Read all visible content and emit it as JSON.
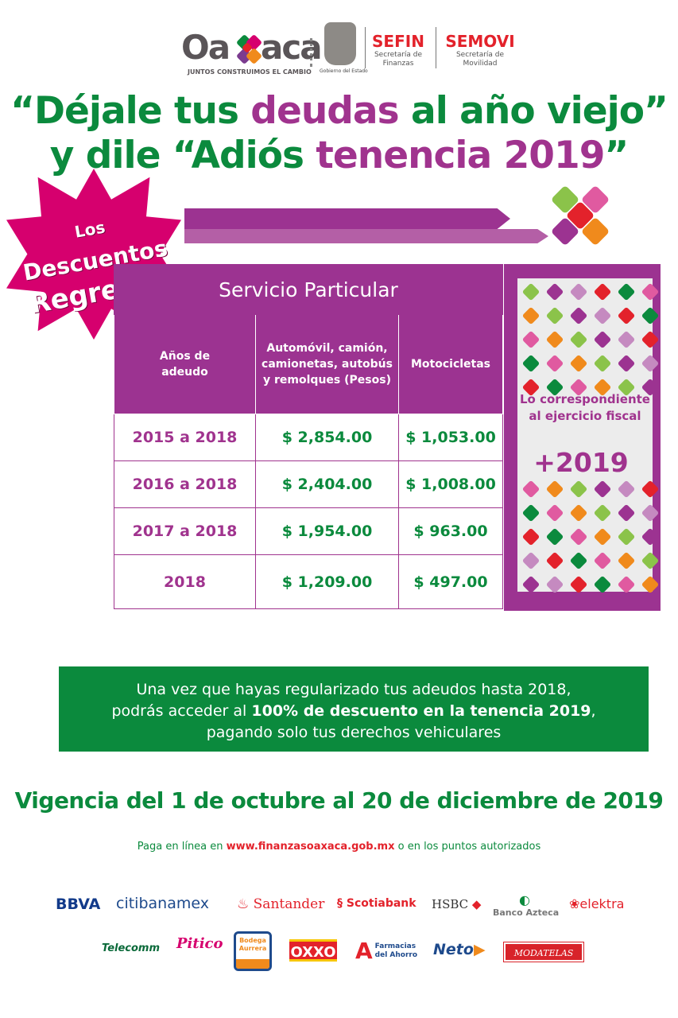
{
  "header": {
    "oaxaca_logo": "Oaxaca",
    "oaxaca_slogan": "JUNTOS CONSTRUIMOS EL CAMBIO",
    "gobierno": "Gobierno del Estado",
    "sefin": "SEFIN",
    "sefin_sub1": "Secretaría de",
    "sefin_sub2": "Finanzas",
    "semovi": "SEMOVI",
    "semovi_sub1": "Secretaría de",
    "semovi_sub2": "Movilidad"
  },
  "headline": {
    "l1_a": "“Déjale tus ",
    "l1_b": "deudas",
    "l1_c": " al año viejo”",
    "l2_a": "y dile “Adiós ",
    "l2_b": "tenencia 2019",
    "l2_c": "”"
  },
  "badge": {
    "l1": "Los",
    "l2": "Descuentos",
    "l3": "Regresan"
  },
  "table": {
    "title": "Servicio Particular",
    "columns": [
      "Años de adeudo",
      "Automóvil, camión, camionetas, autobús y remolques (Pesos)",
      "Motocicletas"
    ],
    "rows": [
      [
        "2015 a 2018",
        "$ 2,854.00",
        "$ 1,053.00"
      ],
      [
        "2016 a 2018",
        "$ 2,404.00",
        "$ 1,008.00"
      ],
      [
        "2017 a 2018",
        "$ 1,954.00",
        "$ 963.00"
      ],
      [
        "2018",
        "$ 1,209.00",
        "$ 497.00"
      ]
    ]
  },
  "side": {
    "text": "Lo correspondiente al ejercicio fiscal",
    "plus": "+2019"
  },
  "notice": {
    "l1": "Una vez que hayas regularizado tus adeudos hasta 2018,",
    "l2a": "podrás acceder al ",
    "l2b": "100% de descuento en la tenencia 2019",
    ",l2c": ",",
    "l3": "pagando solo tus derechos vehiculares"
  },
  "vigencia": "Vigencia del 1 de octubre al 20 de diciembre de 2019",
  "pay": {
    "a": "Paga en línea en ",
    "url": "www.finanzasoaxaca.gob.mx",
    "b": " o en los puntos autorizados"
  },
  "partners_row1": [
    "BBVA",
    "citibanamex",
    "Santander",
    "Scotiabank",
    "HSBC",
    "Banco Azteca",
    "elektra"
  ],
  "partners_row2": [
    "Telecomm",
    "Pitico",
    "Bodega Aurrera",
    "OXXO",
    "Farmacias del Ahorro",
    "Neto",
    "MODATELAS"
  ],
  "colors": {
    "green": "#0b8a3d",
    "purple": "#9c3391",
    "magenta": "#d6006e",
    "red": "#e3222b"
  }
}
